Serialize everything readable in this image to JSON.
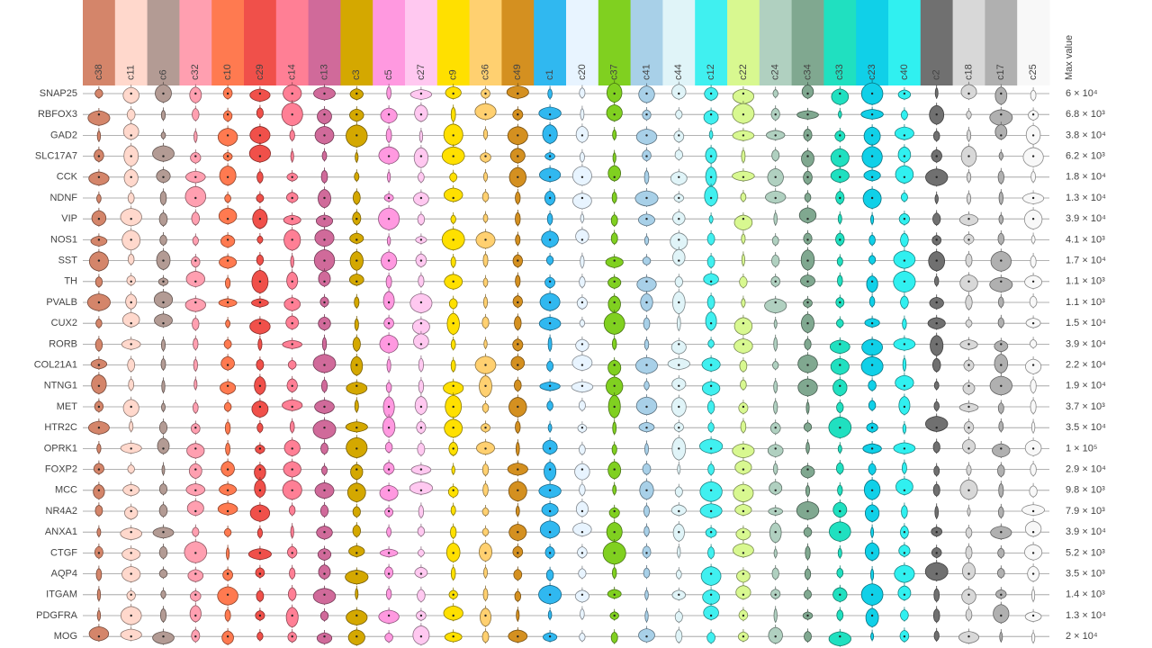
{
  "chart_data": {
    "type": "violin-grid",
    "max_value_label": "Max value",
    "columns": [
      {
        "name": "c38",
        "color": "#d4856a"
      },
      {
        "name": "c11",
        "color": "#ffd8cc"
      },
      {
        "name": "c6",
        "color": "#b39b94"
      },
      {
        "name": "c32",
        "color": "#ff9fb0"
      },
      {
        "name": "c10",
        "color": "#ff7a50"
      },
      {
        "name": "c29",
        "color": "#f0504a"
      },
      {
        "name": "c14",
        "color": "#ff7f95"
      },
      {
        "name": "c13",
        "color": "#d06a9a"
      },
      {
        "name": "c3",
        "color": "#d4a800"
      },
      {
        "name": "c5",
        "color": "#ff99e0"
      },
      {
        "name": "c27",
        "color": "#ffc8f0"
      },
      {
        "name": "c9",
        "color": "#ffe000"
      },
      {
        "name": "c36",
        "color": "#ffd070"
      },
      {
        "name": "c49",
        "color": "#d49020"
      },
      {
        "name": "c1",
        "color": "#30b8f0"
      },
      {
        "name": "c20",
        "color": "#e8f4ff"
      },
      {
        "name": "c37",
        "color": "#80d020"
      },
      {
        "name": "c41",
        "color": "#a8d0e8"
      },
      {
        "name": "c44",
        "color": "#e0f4f8"
      },
      {
        "name": "c12",
        "color": "#40f0f0"
      },
      {
        "name": "c22",
        "color": "#d8f890"
      },
      {
        "name": "c24",
        "color": "#b0d0c0"
      },
      {
        "name": "c34",
        "color": "#80a890"
      },
      {
        "name": "c33",
        "color": "#20e0c0"
      },
      {
        "name": "c23",
        "color": "#10d0e8"
      },
      {
        "name": "c40",
        "color": "#30f0f0"
      },
      {
        "name": "c2",
        "color": "#707070"
      },
      {
        "name": "c18",
        "color": "#d8d8d8"
      },
      {
        "name": "c17",
        "color": "#b0b0b0"
      },
      {
        "name": "c25",
        "color": "#f8f8f8"
      }
    ],
    "rows": [
      {
        "gene": "SNAP25",
        "max": "6 × 10⁴"
      },
      {
        "gene": "RBFOX3",
        "max": "6.8 × 10³"
      },
      {
        "gene": "GAD2",
        "max": "3.8 × 10⁴"
      },
      {
        "gene": "SLC17A7",
        "max": "6.2 × 10³"
      },
      {
        "gene": "CCK",
        "max": "1.8 × 10⁴"
      },
      {
        "gene": "NDNF",
        "max": "1.3 × 10⁴"
      },
      {
        "gene": "VIP",
        "max": "3.9 × 10⁴"
      },
      {
        "gene": "NOS1",
        "max": "4.1 × 10³"
      },
      {
        "gene": "SST",
        "max": "1.7 × 10⁴"
      },
      {
        "gene": "TH",
        "max": "1.1 × 10³"
      },
      {
        "gene": "PVALB",
        "max": "1.1 × 10³"
      },
      {
        "gene": "CUX2",
        "max": "1.5 × 10⁴"
      },
      {
        "gene": "RORB",
        "max": "3.9 × 10⁴"
      },
      {
        "gene": "COL21A1",
        "max": "2.2 × 10⁴"
      },
      {
        "gene": "NTNG1",
        "max": "1.9 × 10⁴"
      },
      {
        "gene": "MET",
        "max": "3.7 × 10³"
      },
      {
        "gene": "HTR2C",
        "max": "3.5 × 10⁴"
      },
      {
        "gene": "OPRK1",
        "max": "1 × 10⁵"
      },
      {
        "gene": "FOXP2",
        "max": "2.9 × 10⁴"
      },
      {
        "gene": "MCC",
        "max": "9.8 × 10³"
      },
      {
        "gene": "NR4A2",
        "max": "7.9 × 10³"
      },
      {
        "gene": "ANXA1",
        "max": "3.9 × 10⁴"
      },
      {
        "gene": "CTGF",
        "max": "5.2 × 10³"
      },
      {
        "gene": "AQP4",
        "max": "3.5 × 10³"
      },
      {
        "gene": "ITGAM",
        "max": "1.4 × 10³"
      },
      {
        "gene": "PDGFRA",
        "max": "1.3 × 10⁴"
      },
      {
        "gene": "MOG",
        "max": "2 × 10⁴"
      }
    ]
  }
}
